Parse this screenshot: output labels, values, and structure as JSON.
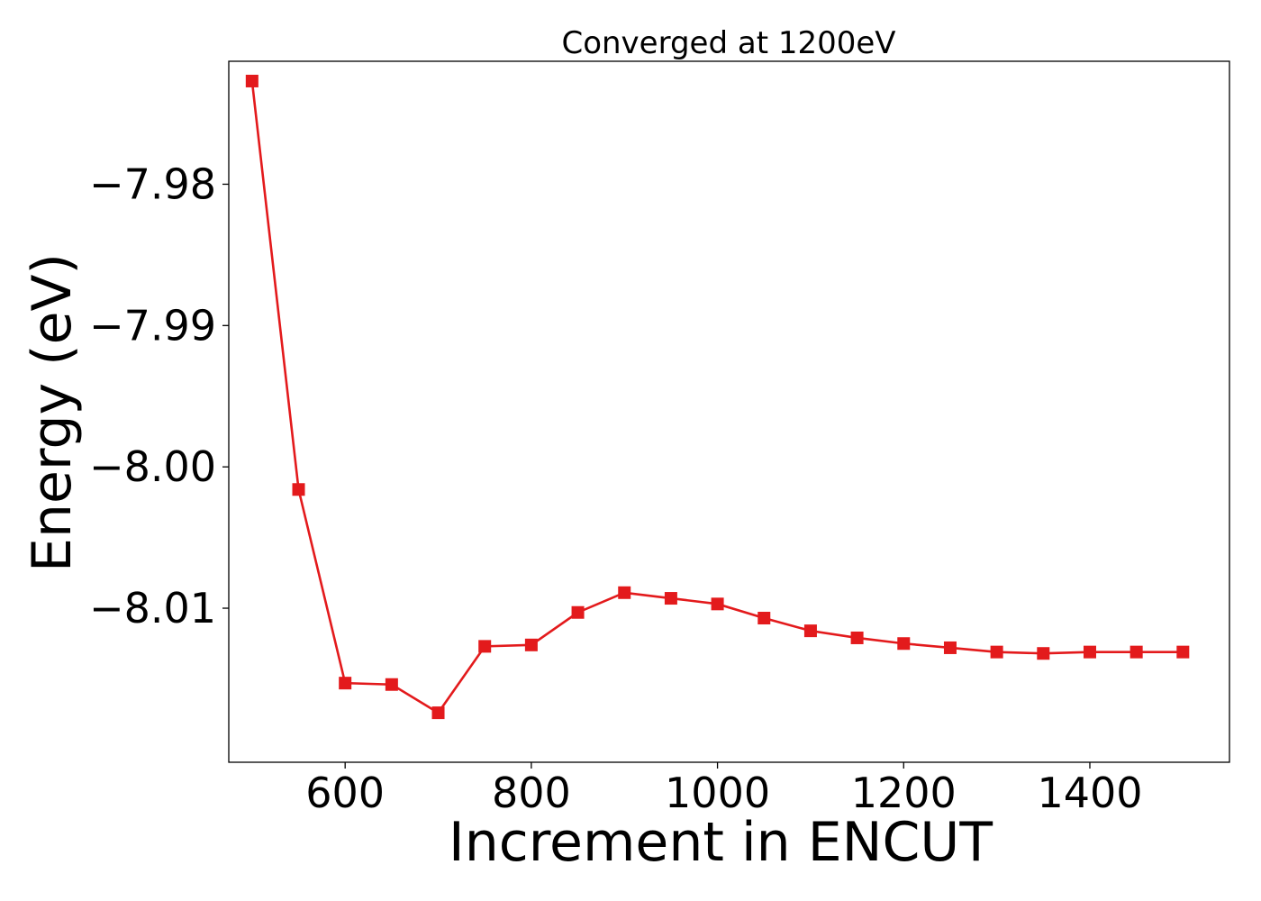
{
  "chart_data": {
    "type": "line",
    "title": "Converged at 1200eV",
    "xlabel": "Increment in ENCUT",
    "ylabel": "Energy (eV)",
    "xlim": [
      475,
      1550
    ],
    "ylim": [
      -8.0209,
      -7.9713
    ],
    "x_ticks": [
      600,
      800,
      1000,
      1200,
      1400
    ],
    "y_ticks": [
      -7.98,
      -7.99,
      -8.0,
      -8.01
    ],
    "x_tick_labels": [
      "600",
      "800",
      "1000",
      "1200",
      "1400"
    ],
    "y_tick_labels": [
      "−7.98",
      "−7.99",
      "−8.00",
      "−8.01"
    ],
    "grid": false,
    "series": [
      {
        "color": "#e31a1c",
        "marker": "square",
        "x": [
          500,
          550,
          600,
          650,
          700,
          750,
          800,
          850,
          900,
          950,
          1000,
          1050,
          1100,
          1150,
          1200,
          1250,
          1300,
          1350,
          1400,
          1450,
          1500
        ],
        "y": [
          -7.9727,
          -8.0016,
          -8.0153,
          -8.0154,
          -8.0174,
          -8.0127,
          -8.0126,
          -8.0103,
          -8.0089,
          -8.0093,
          -8.0097,
          -8.0107,
          -8.0116,
          -8.0121,
          -8.0125,
          -8.0128,
          -8.0131,
          -8.0132,
          -8.0131,
          -8.0131,
          -8.0131
        ]
      }
    ]
  }
}
